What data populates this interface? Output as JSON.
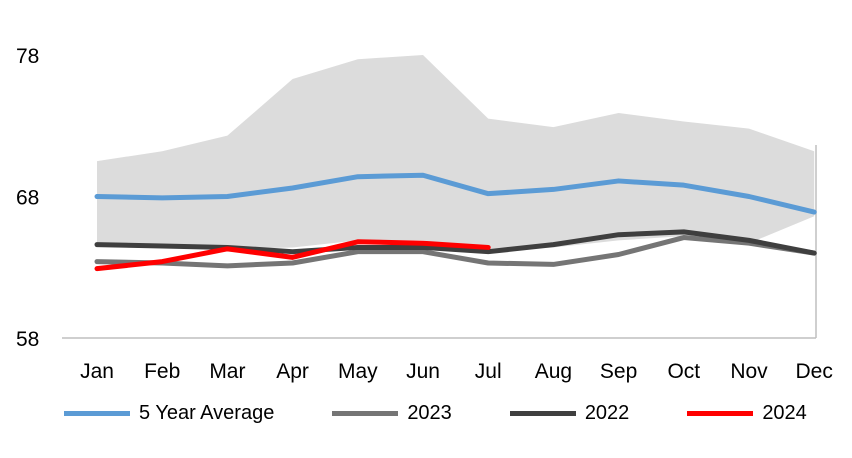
{
  "chart_data": {
    "type": "line",
    "title": "",
    "xlabel": "",
    "ylabel": "",
    "categories": [
      "Jan",
      "Feb",
      "Mar",
      "Apr",
      "May",
      "Jun",
      "Jul",
      "Aug",
      "Sep",
      "Oct",
      "Nov",
      "Dec"
    ],
    "ylim": [
      58,
      78
    ],
    "yticks": [
      58,
      68,
      78
    ],
    "grid": false,
    "legend_position": "bottom",
    "axis_color": "#BFBFBF",
    "band": {
      "name": "5-year-range",
      "color": "#DCDCDC",
      "upper": [
        70.5,
        71.2,
        72.3,
        76.3,
        77.7,
        78.0,
        73.5,
        72.9,
        73.9,
        73.3,
        72.8,
        71.2
      ],
      "lower": [
        64.6,
        64.4,
        64.3,
        64.4,
        64.9,
        64.9,
        64.2,
        64.4,
        64.9,
        65.2,
        64.7,
        66.6
      ]
    },
    "series": [
      {
        "name": "5 Year Average",
        "color": "#5B9BD5",
        "width": 5,
        "values": [
          68.0,
          67.9,
          68.0,
          68.6,
          69.4,
          69.5,
          68.2,
          68.5,
          69.1,
          68.8,
          68.0,
          66.9
        ]
      },
      {
        "name": "2023",
        "color": "#757575",
        "width": 5,
        "values": [
          63.4,
          63.3,
          63.1,
          63.3,
          64.1,
          64.1,
          63.3,
          63.2,
          63.9,
          65.1,
          64.7,
          64.0
        ]
      },
      {
        "name": "2022",
        "color": "#3F3F3F",
        "width": 5,
        "values": [
          64.6,
          64.5,
          64.4,
          64.1,
          64.4,
          64.4,
          64.1,
          64.6,
          65.3,
          65.5,
          64.9,
          64.0
        ]
      },
      {
        "name": "2024",
        "color": "#FF0000",
        "width": 5,
        "values": [
          62.9,
          63.4,
          64.3,
          63.7,
          64.8,
          64.7,
          64.4,
          null,
          null,
          null,
          null,
          null
        ]
      }
    ]
  }
}
